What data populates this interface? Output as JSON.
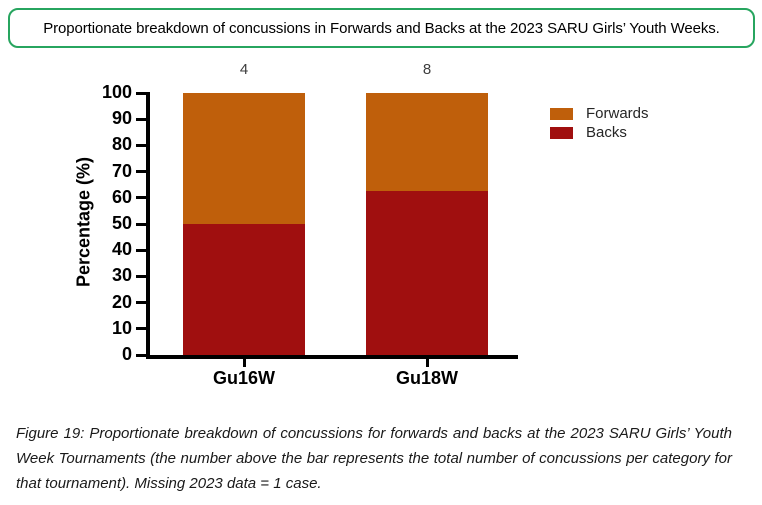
{
  "title_box": {
    "text": "Proportionate breakdown of concussions in Forwards and Backs at the 2023 SARU Girls’ Youth Weeks.",
    "border_color": "#27A55F"
  },
  "chart_data": {
    "type": "bar",
    "stacked": true,
    "categories": [
      "Gu16W",
      "Gu18W"
    ],
    "series": [
      {
        "name": "Backs",
        "color": "#A00F0F",
        "values": [
          50,
          62.5
        ]
      },
      {
        "name": "Forwards",
        "color": "#BF5F0B",
        "values": [
          50,
          37.5
        ]
      }
    ],
    "bar_totals": [
      "4",
      "8"
    ],
    "ylabel": "Percentage (%)",
    "xlabel": "",
    "ylim": [
      0,
      100
    ],
    "ytick_step": 10,
    "grid": false,
    "legend": {
      "position": "right",
      "entries": [
        "Forwards",
        "Backs"
      ]
    }
  },
  "caption": {
    "text": "Figure 19: Proportionate breakdown of concussions for forwards and backs at the 2023 SARU Girls’ Youth Week Tournaments (the number above the bar represents the total number of concussions per category for that tournament). Missing 2023 data = 1 case."
  }
}
